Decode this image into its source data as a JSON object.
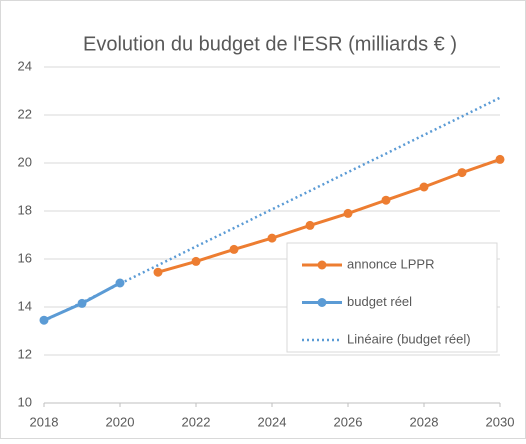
{
  "chart_data": {
    "type": "line",
    "title": "Evolution du budget de l'ESR (milliards € )",
    "x": [
      2018,
      2019,
      2020,
      2021,
      2022,
      2023,
      2024,
      2025,
      2026,
      2027,
      2028,
      2029,
      2030
    ],
    "series": [
      {
        "name": "annonce LPPR",
        "color": "#ed7d31",
        "marker": true,
        "dash": "solid",
        "values": [
          null,
          null,
          null,
          15.45,
          15.9,
          16.4,
          16.87,
          17.4,
          17.9,
          18.45,
          19.0,
          19.6,
          20.15
        ]
      },
      {
        "name": "budget réel",
        "color": "#5b9bd5",
        "marker": true,
        "dash": "solid",
        "values": [
          13.45,
          14.15,
          15.0,
          null,
          null,
          null,
          null,
          null,
          null,
          null,
          null,
          null,
          null
        ]
      },
      {
        "name": "Linéaire (budget réel)",
        "color": "#5b9bd5",
        "marker": false,
        "dash": "dotted",
        "values": [
          13.42,
          14.19,
          14.97,
          15.74,
          16.52,
          17.29,
          18.07,
          18.84,
          19.62,
          20.39,
          21.17,
          21.94,
          22.72
        ]
      }
    ],
    "xlim": [
      2018,
      2030
    ],
    "xticks": [
      2018,
      2020,
      2022,
      2024,
      2026,
      2028,
      2030
    ],
    "ylim": [
      10,
      24
    ],
    "yticks": [
      10,
      12,
      14,
      16,
      18,
      20,
      22,
      24
    ],
    "grid": true,
    "legend": "lower right"
  }
}
